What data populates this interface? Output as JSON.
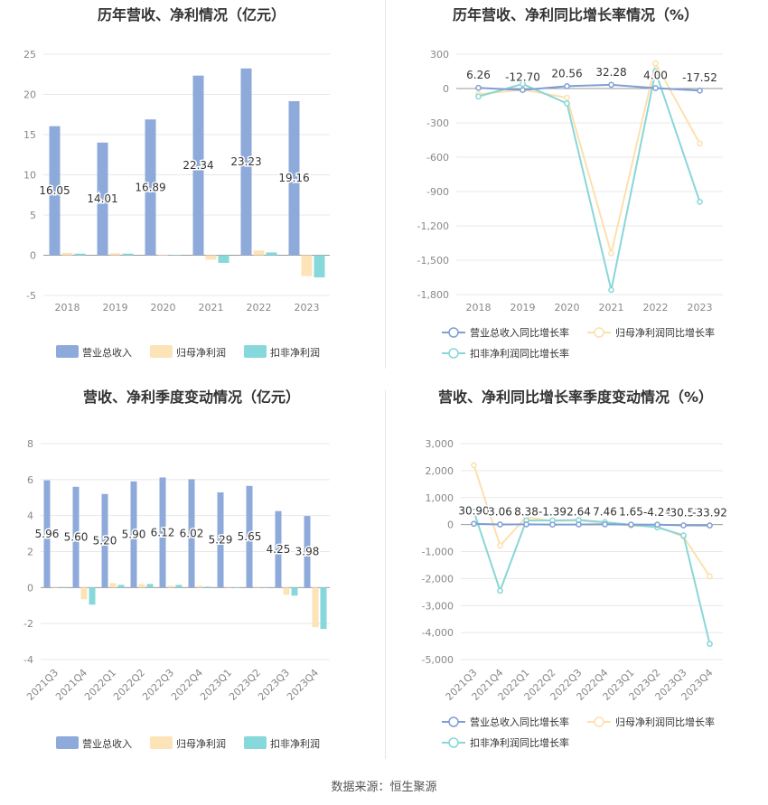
{
  "source_note": "数据来源：恒生聚源",
  "colors": {
    "revenue": "#8eaadb",
    "net_profit": "#fde3b8",
    "deducted_profit": "#86d8da",
    "rev_growth": "#7f9fd4",
    "np_growth": "#fde0ae",
    "dp_growth": "#89d6d8",
    "grid": "#e8e8e8",
    "axis_text": "#888888"
  },
  "chart_data": [
    {
      "id": "annual-values",
      "type": "bar",
      "title": "历年营收、净利情况（亿元）",
      "categories": [
        "2018",
        "2019",
        "2020",
        "2021",
        "2022",
        "2023"
      ],
      "ylim": [
        -5,
        25
      ],
      "yticks": [
        "25",
        "20",
        "15",
        "10",
        "5",
        "0",
        "-5"
      ],
      "ytick_values": [
        25,
        20,
        15,
        10,
        5,
        0,
        -5
      ],
      "series": [
        {
          "name": "营业总收入",
          "values": [
            16.05,
            14.01,
            16.89,
            22.34,
            23.23,
            19.16
          ],
          "labels": [
            "16.05",
            "14.01",
            "16.89",
            "22.34",
            "23.23",
            "19.16"
          ]
        },
        {
          "name": "归母净利润",
          "values": [
            0.3,
            0.25,
            0.05,
            -0.55,
            0.6,
            -2.6
          ]
        },
        {
          "name": "扣非净利润",
          "values": [
            0.2,
            0.2,
            0.05,
            -0.95,
            0.35,
            -2.75
          ]
        }
      ],
      "legend_position": "bottom"
    },
    {
      "id": "annual-growth",
      "type": "line",
      "title": "历年营收、净利同比增长率情况（%）",
      "categories": [
        "2018",
        "2019",
        "2020",
        "2021",
        "2022",
        "2023"
      ],
      "ylim": [
        -1800,
        300
      ],
      "yticks": [
        "300",
        "0",
        "-300",
        "-600",
        "-900",
        "-1,200",
        "-1,500",
        "-1,800"
      ],
      "ytick_values": [
        300,
        0,
        -300,
        -600,
        -900,
        -1200,
        -1500,
        -1800
      ],
      "series": [
        {
          "name": "营业总收入同比增长率",
          "values": [
            6.26,
            -12.7,
            20.56,
            32.28,
            4.0,
            -17.52
          ],
          "labels": [
            "6.26",
            "-12.70",
            "20.56",
            "32.28",
            "4.00",
            "-17.52"
          ]
        },
        {
          "name": "归母净利润同比增长率",
          "values": [
            -50,
            -10,
            -80,
            -1440,
            220,
            -480
          ]
        },
        {
          "name": "扣非净利润同比增长率",
          "values": [
            -70,
            40,
            -130,
            -1760,
            150,
            -990
          ]
        }
      ],
      "legend_position": "bottom"
    },
    {
      "id": "quarterly-values",
      "type": "bar",
      "title": "营收、净利季度变动情况（亿元）",
      "categories": [
        "2021Q3",
        "2021Q4",
        "2022Q1",
        "2022Q2",
        "2022Q3",
        "2022Q4",
        "2023Q1",
        "2023Q2",
        "2023Q3",
        "2023Q4"
      ],
      "ylim": [
        -4,
        8
      ],
      "yticks": [
        "8",
        "6",
        "4",
        "2",
        "0",
        "-2",
        "-4"
      ],
      "ytick_values": [
        8,
        6,
        4,
        2,
        0,
        -2,
        -4
      ],
      "series": [
        {
          "name": "营业总收入",
          "values": [
            5.96,
            5.6,
            5.2,
            5.9,
            6.12,
            6.02,
            5.29,
            5.65,
            4.25,
            3.98
          ],
          "labels": [
            "5.96",
            "5.60",
            "5.20",
            "5.90",
            "6.12",
            "6.02",
            "5.29",
            "5.65",
            "4.25",
            "3.98"
          ]
        },
        {
          "name": "归母净利润",
          "values": [
            0.05,
            -0.65,
            0.25,
            0.2,
            0.1,
            0.1,
            0.05,
            0.05,
            -0.4,
            -2.2
          ]
        },
        {
          "name": "扣非净利润",
          "values": [
            0.03,
            -0.95,
            0.15,
            0.2,
            0.15,
            0.05,
            0.02,
            0.02,
            -0.45,
            -2.3
          ]
        }
      ],
      "legend_position": "bottom"
    },
    {
      "id": "quarterly-growth",
      "type": "line",
      "title": "营收、净利同比增长率季度变动情况（%）",
      "categories": [
        "2021Q3",
        "2021Q4",
        "2022Q1",
        "2022Q2",
        "2022Q3",
        "2022Q4",
        "2023Q1",
        "2023Q2",
        "2023Q3",
        "2023Q4"
      ],
      "ylim": [
        -5000,
        3000
      ],
      "yticks": [
        "3,000",
        "2,000",
        "1,000",
        "0",
        "-1,000",
        "-2,000",
        "-3,000",
        "-4,000",
        "-5,000"
      ],
      "ytick_values": [
        3000,
        2000,
        1000,
        0,
        -1000,
        -2000,
        -3000,
        -4000,
        -5000
      ],
      "series": [
        {
          "name": "营业总收入同比增长率",
          "values": [
            30.9,
            3.06,
            8.38,
            -1.39,
            2.64,
            7.46,
            1.65,
            -4.24,
            -30.51,
            -33.92
          ],
          "labels": [
            "30.90",
            "3.06",
            "8.38",
            "-1.39",
            "2.64",
            "7.46",
            "1.65",
            "-4.24",
            "-30.51",
            "-33.92"
          ]
        },
        {
          "name": "归母净利润同比增长率",
          "values": [
            2200,
            -780,
            280,
            130,
            150,
            60,
            -40,
            -70,
            -450,
            -1920
          ]
        },
        {
          "name": "扣非净利润同比增长率",
          "values": [
            480,
            -2450,
            150,
            150,
            170,
            90,
            -10,
            -100,
            -400,
            -4420
          ]
        }
      ],
      "legend_position": "bottom"
    }
  ]
}
